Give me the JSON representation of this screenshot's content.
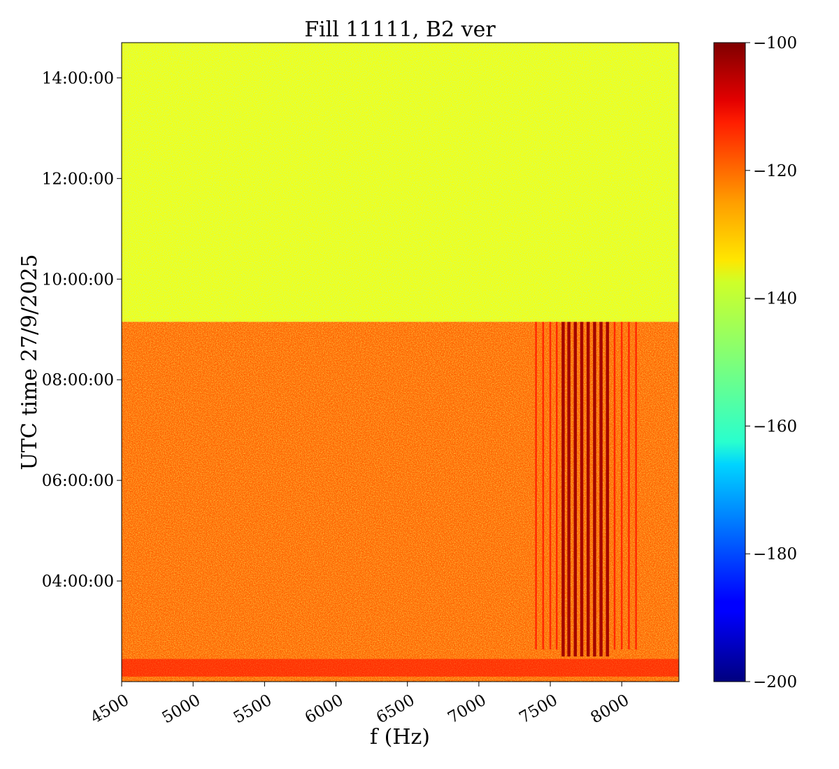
{
  "chart_data": {
    "type": "heatmap",
    "title": "Fill 11111, B2 ver",
    "xlabel": "f (Hz)",
    "ylabel": "UTC time 27/9/2025",
    "xlim": [
      4500,
      8400
    ],
    "x_ticks": [
      4500,
      5000,
      5500,
      6000,
      6500,
      7000,
      7500,
      8000
    ],
    "x_tick_labels": [
      "4500",
      "5000",
      "5500",
      "6000",
      "6500",
      "7000",
      "7500",
      "8000"
    ],
    "ylim_hours": [
      2.0,
      14.7
    ],
    "y_ticks_hours": [
      4,
      6,
      8,
      10,
      12,
      14
    ],
    "y_tick_labels": [
      "04:00:00",
      "06:00:00",
      "08:00:00",
      "10:00:00",
      "12:00:00",
      "14:00:00"
    ],
    "colorbar": {
      "colormap": "jet",
      "range": [
        -200,
        -100
      ],
      "ticks": [
        -100,
        -120,
        -140,
        -160,
        -180,
        -200
      ],
      "tick_labels": [
        "−100",
        "−120",
        "−140",
        "−160",
        "−180",
        "−200"
      ]
    },
    "regions": [
      {
        "time_hours": [
          9.15,
          14.7
        ],
        "level_db": -138
      },
      {
        "time_hours": [
          2.0,
          9.15
        ],
        "level_db": -122
      }
    ],
    "resonance_lines_hz": [
      7400,
      7450,
      7500,
      7545,
      7590,
      7630,
      7675,
      7720,
      7765,
      7810,
      7855,
      7900,
      7950,
      8000,
      8050,
      8100
    ],
    "resonance_time_hours": [
      2.5,
      9.15
    ],
    "resonance_level_db": -103,
    "low_band_time_hours": [
      2.1,
      2.45
    ],
    "low_band_level_db": -113
  }
}
